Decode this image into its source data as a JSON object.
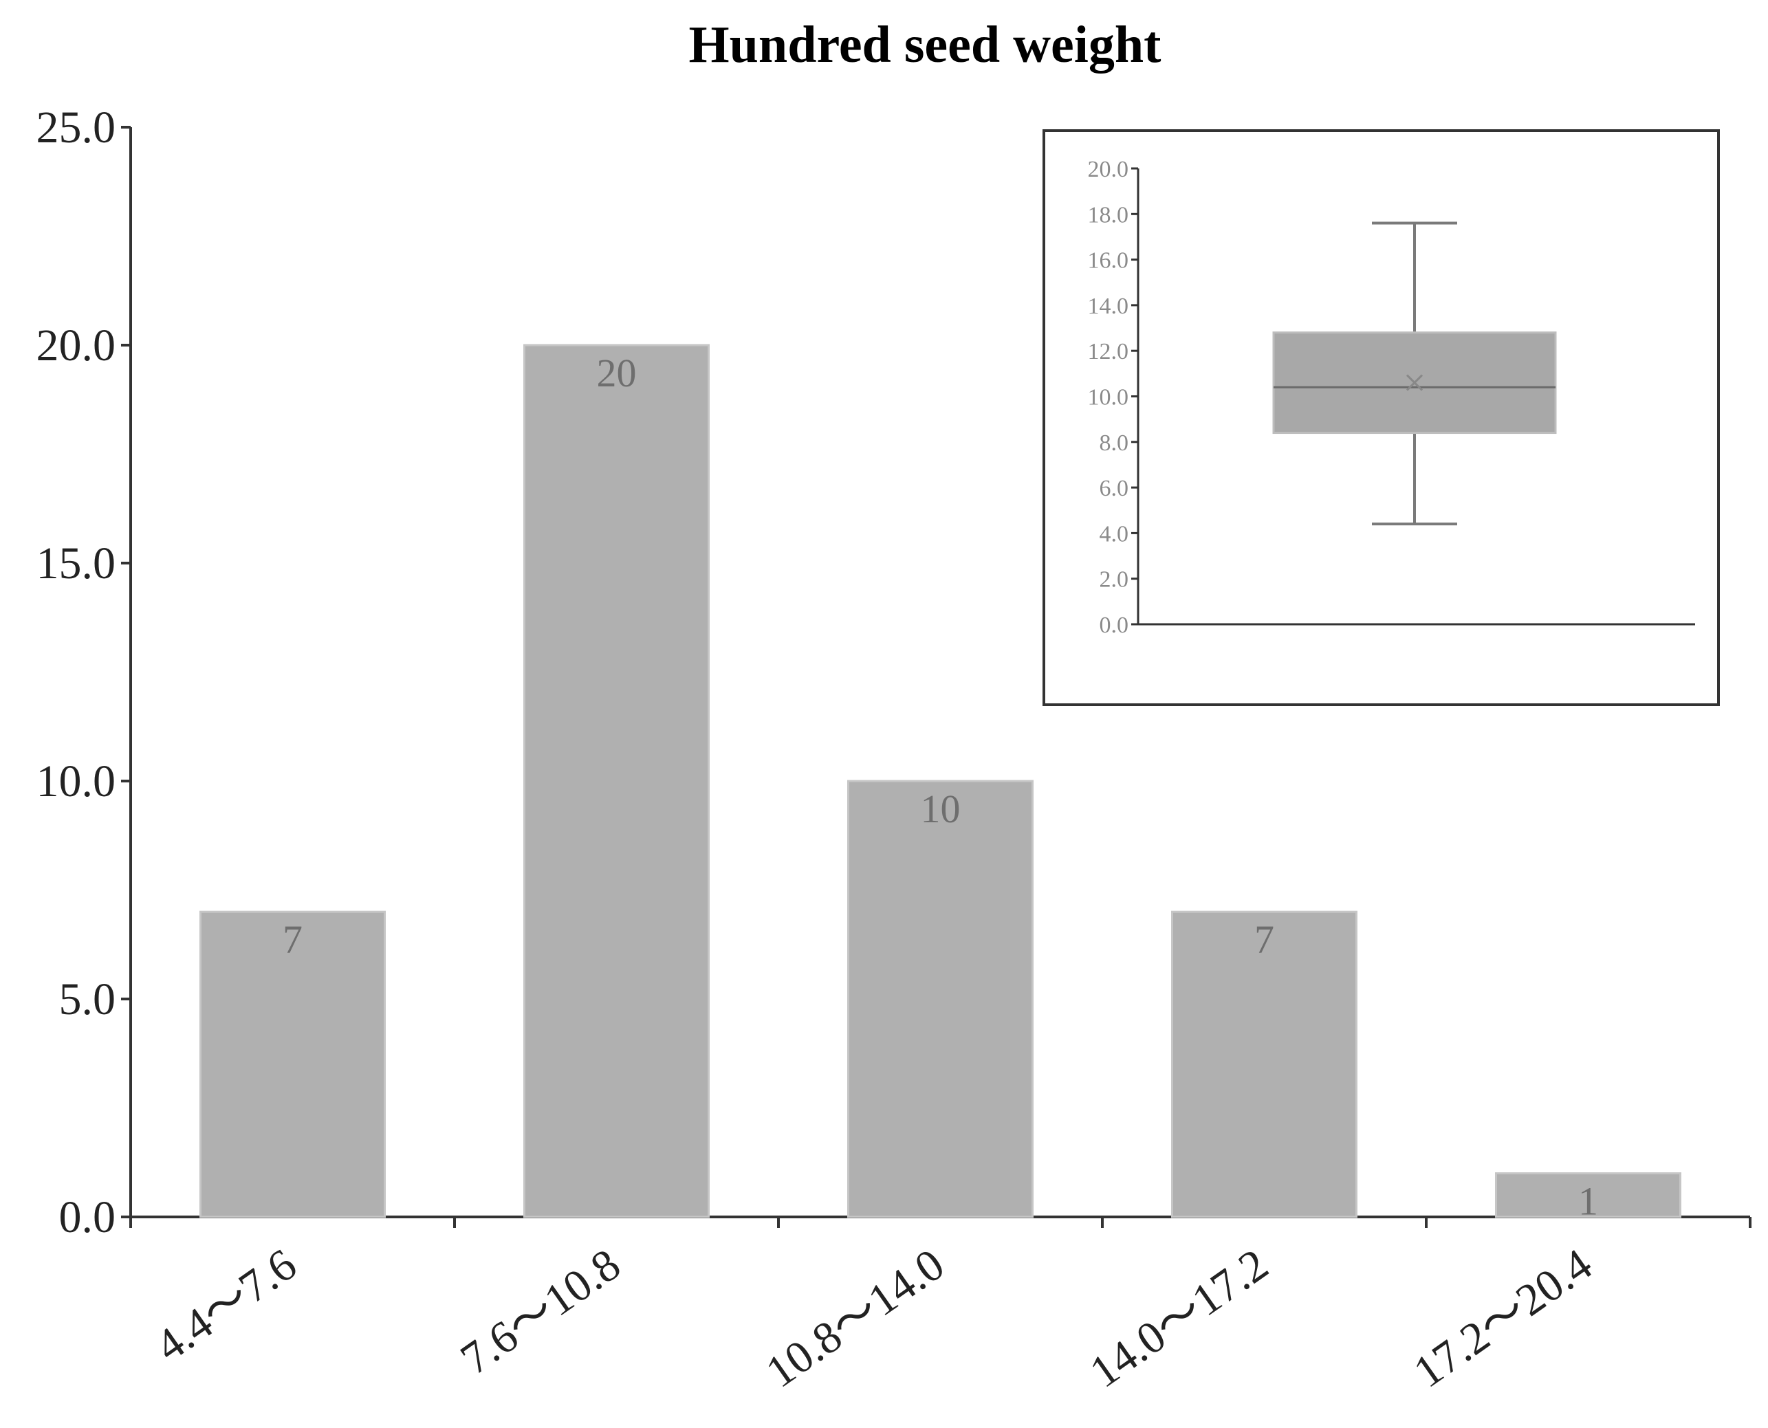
{
  "chart_data": [
    {
      "type": "bar",
      "title": "Hundred seed weight",
      "xlabel": "",
      "ylabel": "",
      "categories": [
        "4.4～7.6",
        "7.6～10.8",
        "10.8～14.0",
        "14.0～17.2",
        "17.2～20.4"
      ],
      "values": [
        7,
        20,
        10,
        7,
        1
      ],
      "data_labels": [
        "7",
        "20",
        "10",
        "7",
        "1"
      ],
      "ylim": [
        0,
        25
      ],
      "yticks": [
        "0.0",
        "5.0",
        "10.0",
        "15.0",
        "20.0",
        "25.0"
      ],
      "grid": false,
      "legend": "none",
      "colors": {
        "bar": "#b0b0b0",
        "axis": "#333333",
        "label": "#6e6e6e",
        "title": "#000000"
      }
    },
    {
      "type": "boxplot",
      "title": "",
      "ylim": [
        0,
        20
      ],
      "yticks": [
        "0.0",
        "2.0",
        "4.0",
        "6.0",
        "8.0",
        "10.0",
        "12.0",
        "14.0",
        "16.0",
        "18.0",
        "20.0"
      ],
      "whisker_low": 4.4,
      "q1": 8.4,
      "median": 10.4,
      "mean": 10.6,
      "q3": 12.8,
      "whisker_high": 17.6,
      "legend": "none",
      "colors": {
        "box": "#a8a8a8",
        "line": "#7a7a7a",
        "axis": "#333333",
        "tick_label": "#8a8a8a"
      }
    }
  ]
}
